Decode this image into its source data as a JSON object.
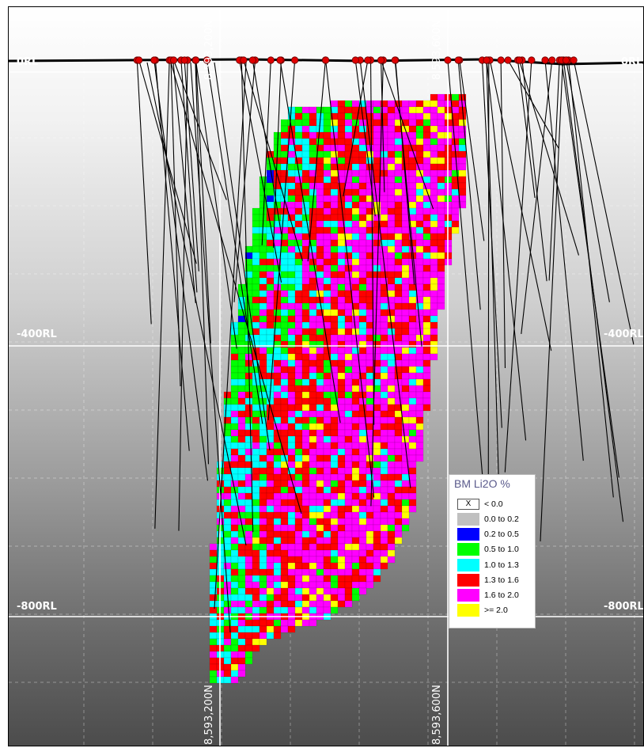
{
  "section": {
    "rl_labels": {
      "zero_left": "0RL",
      "zero_right": "0RL",
      "m400_left": "-400RL",
      "m400_right": "-400RL",
      "m800_left": "-800RL",
      "m800_right": "-800RL"
    },
    "northings": {
      "top_left": "8,593,200N",
      "top_right": "8,593,600N",
      "bottom_left": "8,593,200N",
      "bottom_right": "8,593,600N"
    }
  },
  "legend": {
    "title": "BM Li2O %",
    "items": [
      {
        "label": "< 0.0",
        "color": "none",
        "marker": "X"
      },
      {
        "label": "0.0 to 0.2",
        "color": "#c0c0c0"
      },
      {
        "label": "0.2 to 0.5",
        "color": "#0000ff"
      },
      {
        "label": "0.5 to 1.0",
        "color": "#00ff00"
      },
      {
        "label": "1.0 to 1.3",
        "color": "#00ffff"
      },
      {
        "label": "1.3 to 1.6",
        "color": "#ff0000"
      },
      {
        "label": "1.6 to 2.0",
        "color": "#ff00ff"
      },
      {
        "label": ">= 2.0",
        "color": "#ffff00"
      }
    ]
  }
}
